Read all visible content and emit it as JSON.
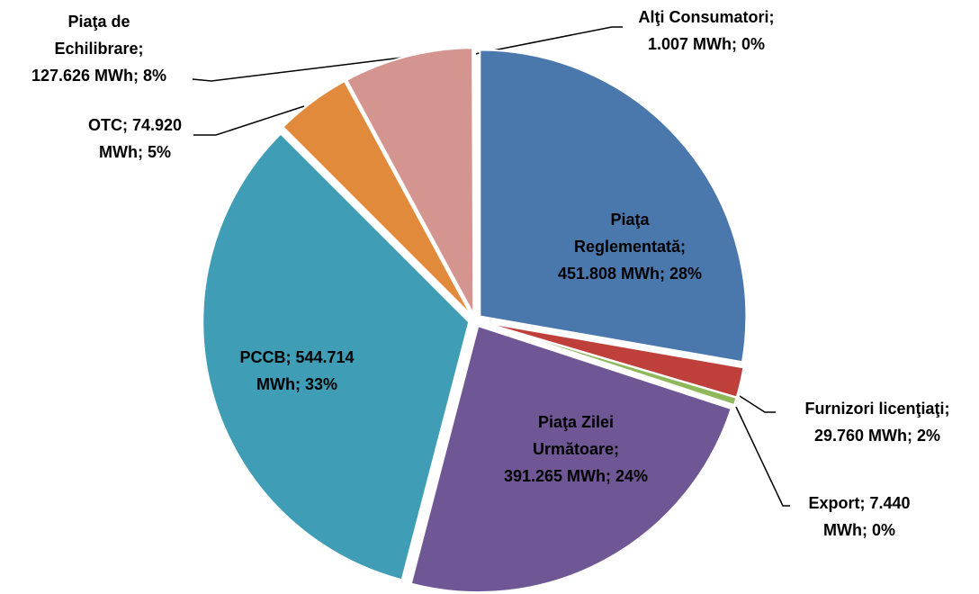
{
  "chart_data": {
    "type": "pie",
    "labels": [
      "Piaţa Reglementată; 451.808 MWh; 28%",
      "Furnizori licenţiaţi; 29.760 MWh; 2%",
      "Export;  7.440 MWh; 0%",
      "Piaţa Zilei Următoare; 391.265 MWh; 24%",
      "PCCB;  544.714 MWh; 33%",
      "OTC;  74.920 MWh; 5%",
      "Piaţa de Echilibrare; 127.626 MWh; 8%",
      "Alţi Consumatori; 1.007 MWh; 0%"
    ],
    "values": [
      451808,
      29760,
      7440,
      391265,
      544714,
      74920,
      127626,
      1007
    ],
    "colors": [
      "#4a78ad",
      "#bf3f3b",
      "#8fb85a",
      "#6f5694",
      "#3f9db5",
      "#e28a3b",
      "#d49591",
      "#a4c46a"
    ]
  }
}
